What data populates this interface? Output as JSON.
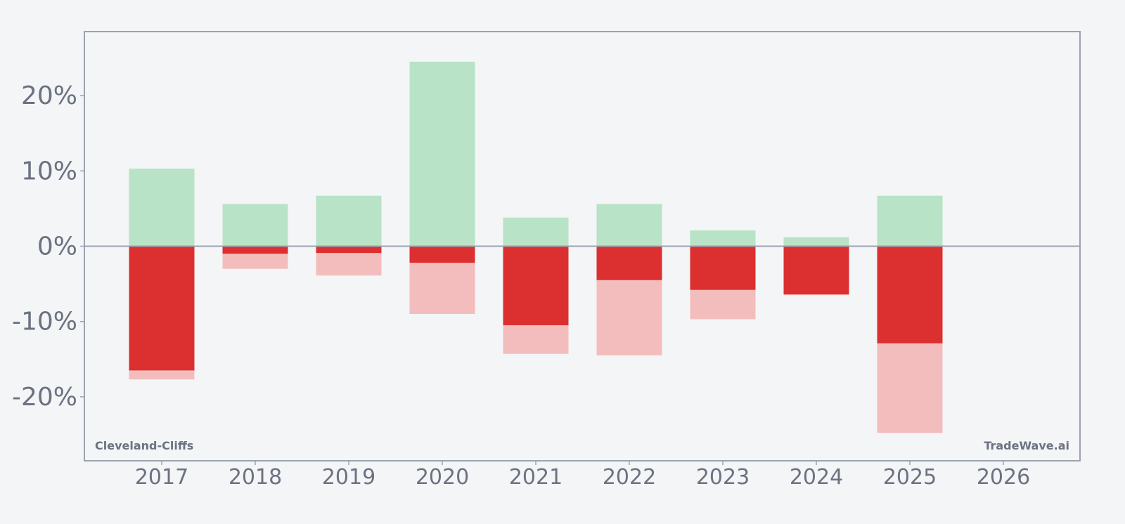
{
  "chart_data": {
    "type": "bar",
    "categories": [
      "2017",
      "2018",
      "2019",
      "2020",
      "2021",
      "2022",
      "2023",
      "2024",
      "2025",
      "2026"
    ],
    "series": [
      {
        "values": [
          10.3,
          5.6,
          6.7,
          24.5,
          3.8,
          5.6,
          2.1,
          1.2,
          6.7,
          null
        ]
      },
      {
        "values": [
          -16.5,
          -1.0,
          -0.9,
          -2.2,
          -10.5,
          -4.5,
          -5.8,
          -6.4,
          -12.9,
          null
        ]
      },
      {
        "values": [
          -17.7,
          -3.0,
          -3.9,
          -9.0,
          -14.3,
          -14.5,
          -9.7,
          -6.5,
          -24.8,
          null
        ]
      }
    ],
    "yticks": [
      -20,
      -10,
      0,
      10,
      20
    ],
    "ytick_labels": [
      "-20%",
      "-10%",
      "0%",
      "10%",
      "20%"
    ],
    "ylim": [
      -28.5,
      28.5
    ],
    "grid": false,
    "colors": {
      "positive": "#b9e3c6",
      "negative": "#dc2f2f",
      "negative_light": "#f4bdbd",
      "axis": "#9ca3af",
      "text": "#6b7280",
      "background": "#f4f5f7"
    }
  },
  "watermark": {
    "left": "Cleveland-Cliffs",
    "right": "TradeWave.ai"
  }
}
